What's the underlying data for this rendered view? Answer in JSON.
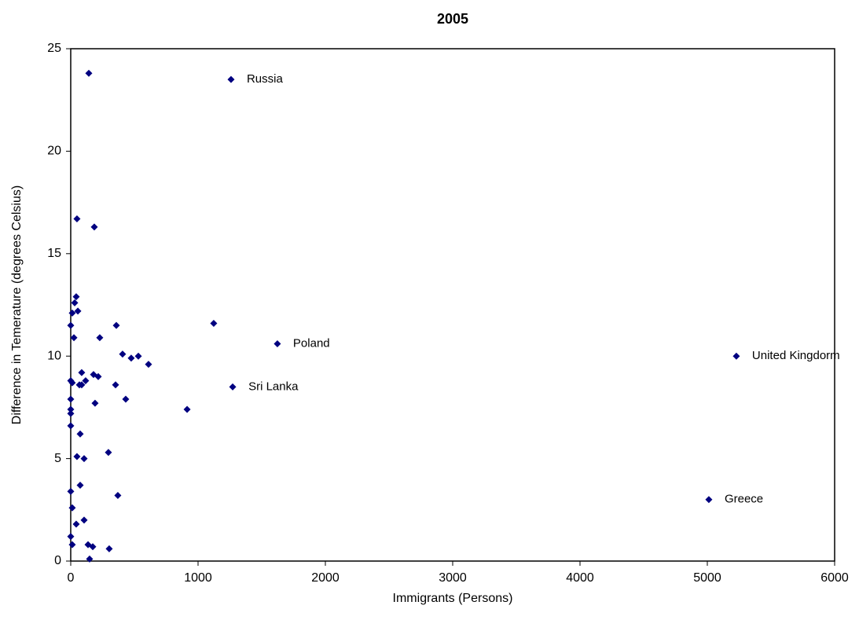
{
  "chart_data": {
    "type": "scatter",
    "title": "2005",
    "x_label": "Immigrants (Persons)",
    "y_label": "Difference in Temerature (degrees Celsius)",
    "color": "#000080",
    "grid": false,
    "xlim": [
      0,
      6000
    ],
    "xticks": [
      0,
      1000,
      2000,
      3000,
      4000,
      5000,
      6000
    ],
    "ylim": [
      0,
      25
    ],
    "yticks": [
      0,
      5,
      10,
      15,
      20,
      25
    ],
    "x": [
      142,
      1259,
      49,
      185,
      43,
      31,
      56,
      12,
      0,
      358,
      1123,
      25,
      228,
      1623,
      407,
      475,
      531,
      611,
      5228,
      86,
      179,
      216,
      0,
      12,
      117,
      68,
      86,
      352,
      1272,
      432,
      0,
      191,
      0,
      914,
      0,
      0,
      74,
      296,
      49,
      105,
      74,
      370,
      5012,
      0,
      12,
      105,
      43,
      0,
      12,
      136,
      173,
      302,
      148
    ],
    "values": [
      23.8,
      23.5,
      16.7,
      16.3,
      12.9,
      12.6,
      12.2,
      12.1,
      11.5,
      11.5,
      11.6,
      10.9,
      10.9,
      10.6,
      10.1,
      9.9,
      10.0,
      9.6,
      10.0,
      9.2,
      9.1,
      9.0,
      8.8,
      8.7,
      8.8,
      8.6,
      8.6,
      8.6,
      8.5,
      7.9,
      7.9,
      7.7,
      7.4,
      7.4,
      7.2,
      6.6,
      6.2,
      5.3,
      5.1,
      5.0,
      3.7,
      3.2,
      3.0,
      3.4,
      2.6,
      2.0,
      1.8,
      1.2,
      0.8,
      0.8,
      0.7,
      0.6,
      0.1
    ],
    "point_labels": [
      null,
      "Russia",
      null,
      null,
      null,
      null,
      null,
      null,
      null,
      null,
      null,
      null,
      null,
      "Poland",
      null,
      null,
      null,
      null,
      "United Kingdorm",
      null,
      null,
      null,
      null,
      null,
      null,
      null,
      null,
      null,
      "Sri Lanka",
      null,
      null,
      null,
      null,
      null,
      null,
      null,
      null,
      null,
      null,
      null,
      null,
      null,
      "Greece",
      null,
      null,
      null,
      null,
      null,
      null,
      null,
      null,
      null,
      null
    ]
  }
}
